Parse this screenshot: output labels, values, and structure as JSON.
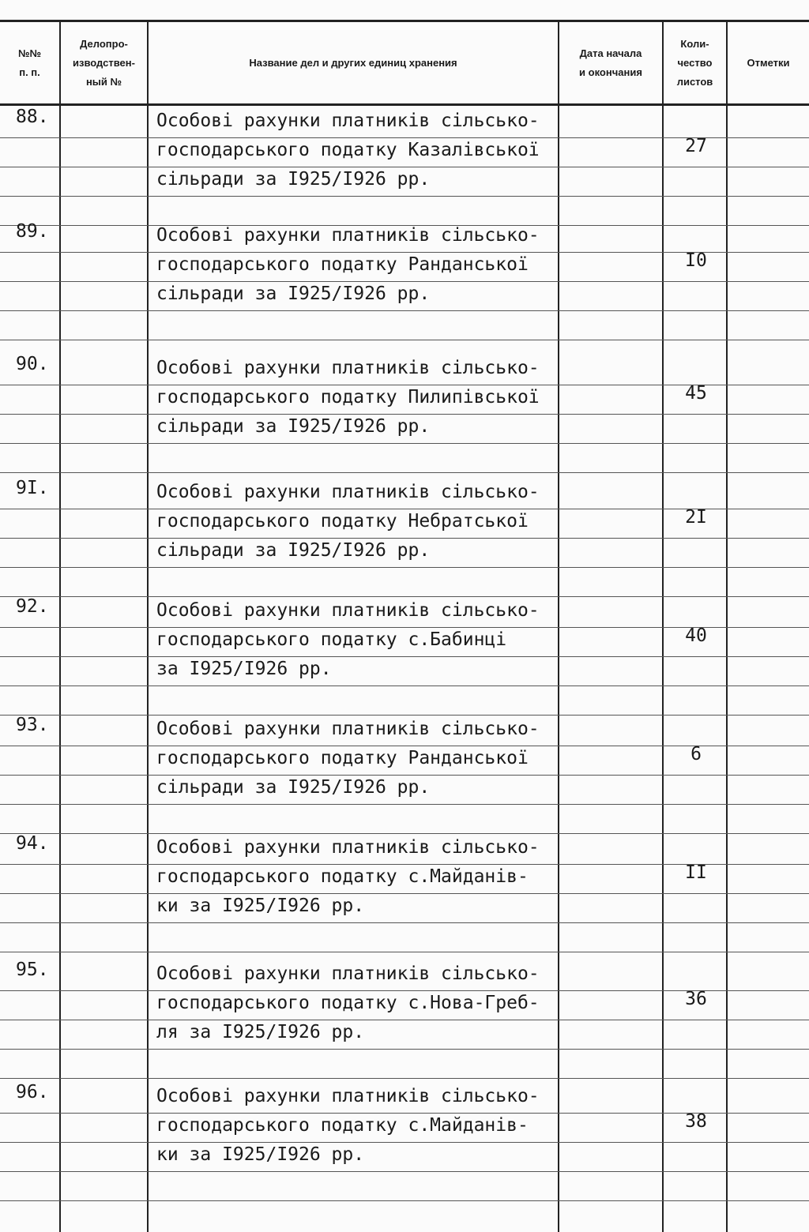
{
  "header": {
    "num": "№№\nп. п.",
    "office_no": "Делопро-\nизводствен-\nный №",
    "title": "Название дел и других единиц  хранения",
    "dates": "Дата начала\nи  окончания",
    "count": "Коли-\nчество\nлистов",
    "notes": "Отметки"
  },
  "rows": [
    {
      "num": "88.",
      "lines": [
        "Особові рахунки платників сільсько-",
        "господарського податку Казалівської",
        "сільради за І925/І926 рр."
      ],
      "count": "27"
    },
    {
      "num": "89.",
      "lines": [
        "Особові рахунки платників сільсько-",
        "господарського податку Ранданської",
        "сільради за І925/І926 рр."
      ],
      "count": "І0"
    },
    {
      "num": "90.",
      "lines": [
        "Особові рахунки платників сільсько-",
        "господарського податку Пилипівської",
        "сільради за І925/І926 рр."
      ],
      "count": "45"
    },
    {
      "num": "9І.",
      "lines": [
        "Особові рахунки платників сільсько-",
        "господарського податку Небратської",
        "сільради за І925/І926 рр."
      ],
      "count": "2І"
    },
    {
      "num": "92.",
      "lines": [
        "Особові рахунки платників сільсько-",
        "господарського податку с.Бабинці",
        "за І925/І926 рр."
      ],
      "count": "40"
    },
    {
      "num": "93.",
      "lines": [
        "Особові рахунки платників сільсько-",
        "господарського податку Ранданської",
        "сільради за І925/І926 рр."
      ],
      "count": "6"
    },
    {
      "num": "94.",
      "lines": [
        "Особові рахунки платників сільсько-",
        "господарського податку с.Майданів-",
        "ки за І925/І926 рр."
      ],
      "count": "ІІ"
    },
    {
      "num": "95.",
      "lines": [
        "Особові рахунки платників сільсько-",
        "господарського податку с.Нова-Греб-",
        "ля за І925/І926 рр."
      ],
      "count": "36"
    },
    {
      "num": "96.",
      "lines": [
        "Особові рахунки платників сільсько-",
        "господарського податку с.Майданів-",
        "ки за І925/І926 рр."
      ],
      "count": "38"
    }
  ]
}
